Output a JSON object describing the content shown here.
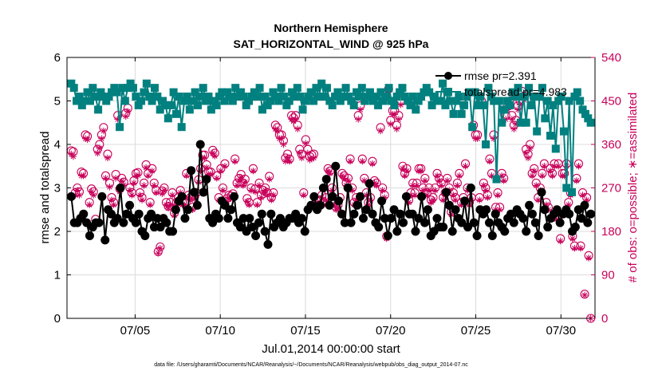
{
  "chart_data": {
    "type": "line",
    "title": "Northern Hemisphere",
    "subtitle": "SAT_HORIZONTAL_WIND @ 925 hPa",
    "xlabel": "Jul.01,2014 00:00:00 start",
    "ylabel": "rmse and totalspread",
    "y2label": "# of obs: o=possible; ∗=assimilated",
    "x_ticks": [
      "07/05",
      "07/10",
      "07/15",
      "07/20",
      "07/25",
      "07/30"
    ],
    "x_tick_days": [
      5,
      10,
      15,
      20,
      25,
      30
    ],
    "xlim": [
      1,
      32
    ],
    "ylim": [
      0,
      6
    ],
    "y_ticks": [
      "0",
      "1",
      "2",
      "3",
      "4",
      "5",
      "6"
    ],
    "y2lim": [
      0,
      540
    ],
    "y2_ticks": [
      "0",
      "90",
      "180",
      "270",
      "360",
      "450",
      "540"
    ],
    "footnote": "data file: /Users/gharamti/Documents/NCAR/Reanalysis/~/Documents/NCAR/Reanalysis/webpub/obs_diag_output_2014-07.nc",
    "legend": [
      {
        "name": "rmse pr=2.391",
        "color": "#000000"
      },
      {
        "name": "totalspread pr=4.983",
        "color": "#00807f"
      }
    ],
    "colors": {
      "rmse": "#000000",
      "spread": "#00807f",
      "obs": "#c8005a",
      "grid": "#dcdcdc"
    },
    "series": [
      {
        "name": "rmse",
        "values": [
          2.8,
          2.2,
          2.2,
          2.3,
          2.4,
          2.2,
          1.9,
          2.1,
          2.2,
          2.2,
          2.8,
          1.8,
          2.5,
          2.4,
          2.2,
          2.3,
          3.0,
          2.2,
          2.4,
          2.6,
          2.3,
          2.2,
          2.4,
          2.0,
          1.9,
          2.3,
          2.4,
          2.1,
          2.3,
          2.1,
          2.3,
          2.2,
          2.0,
          2.0,
          2.5,
          2.7,
          2.8,
          2.3,
          2.5,
          3.4,
          2.9,
          2.6,
          4.0,
          2.9,
          3.2,
          2.3,
          2.2,
          2.4,
          2.3,
          2.7,
          2.6,
          2.3,
          2.5,
          2.8,
          2.2,
          2.1,
          2.3,
          2.0,
          2.3,
          2.1,
          1.9,
          2.2,
          2.4,
          2.0,
          1.7,
          2.4,
          2.1,
          2.2,
          2.3,
          2.1,
          2.2,
          2.3,
          2.3,
          2.4,
          2.2,
          2.3,
          2.0,
          2.5,
          2.6,
          2.8,
          2.5,
          2.6,
          3.0,
          3.2,
          2.6,
          2.8,
          3.5,
          2.7,
          2.4,
          2.2,
          3.0,
          2.2,
          2.4,
          2.6,
          2.8,
          2.3,
          2.5,
          3.1,
          2.4,
          2.2,
          2.1,
          2.7,
          2.3,
          1.9,
          2.3,
          2.5,
          2.0,
          2.4,
          2.2,
          2.8,
          2.4,
          2.4,
          2.0,
          2.3,
          2.8,
          2.2,
          2.5,
          1.9,
          2.0,
          2.3,
          2.1,
          2.1,
          2.9,
          2.6,
          2.0,
          2.5,
          2.3,
          2.2,
          2.7,
          2.1,
          3.0,
          2.2,
          1.9,
          2.5,
          2.4,
          2.5,
          2.2,
          1.9,
          2.4,
          2.2,
          2.1,
          2.0,
          2.3,
          2.4,
          2.2,
          2.5,
          2.4,
          2.3,
          2.0,
          2.6,
          2.4,
          2.2,
          1.9,
          2.9,
          2.5,
          2.1,
          2.3,
          2.4,
          2.5,
          2.2,
          2.4,
          2.5,
          2.4,
          2.0,
          2.1,
          2.5,
          2.3,
          2.6,
          2.2,
          2.4
        ]
      },
      {
        "name": "totalspread",
        "values": [
          5.4,
          5.3,
          5.0,
          5.1,
          4.9,
          5.0,
          5.2,
          5.0,
          5.3,
          5.1,
          4.8,
          5.2,
          5.1,
          5.0,
          5.1,
          5.2,
          5.3,
          5.2,
          4.4,
          5.3,
          5.0,
          5.3,
          5.4,
          5.3,
          5.1,
          4.9,
          5.0,
          5.2,
          5.4,
          5.1,
          5.0,
          5.3,
          5.1,
          4.8,
          5.0,
          4.9,
          4.6,
          4.9,
          5.2,
          4.7,
          5.1,
          4.4,
          5.0,
          5.1,
          4.8,
          5.0,
          5.2,
          4.9,
          5.1,
          5.3,
          5.0,
          5.1,
          4.8,
          5.0,
          4.9,
          5.1,
          5.2,
          5.0,
          5.2,
          5.1,
          5.0,
          5.3,
          5.1,
          5.2,
          5.1,
          4.9,
          5.0,
          5.1,
          5.2,
          5.1,
          5.3,
          4.8,
          5.1,
          4.9,
          5.0,
          5.2,
          5.1,
          5.0,
          5.3,
          5.1,
          4.9,
          5.0,
          5.2,
          5.1,
          5.3,
          5.1,
          4.8,
          5.0,
          5.1,
          5.2,
          5.0,
          5.3,
          5.1,
          5.4,
          5.1,
          5.3,
          5.0,
          4.9,
          5.1,
          5.2,
          5.0,
          5.1,
          5.3,
          5.1,
          5.0,
          4.9,
          5.2,
          5.1,
          5.3,
          5.0,
          5.1,
          5.2,
          5.0,
          5.1,
          4.9,
          5.2,
          5.0,
          5.1,
          5.3,
          5.0,
          4.9,
          5.1,
          5.2,
          5.3,
          5.1,
          5.0,
          4.9,
          5.1,
          4.8,
          5.0,
          5.1,
          5.2,
          5.3,
          5.2,
          4.9,
          5.1,
          5.0,
          5.0,
          5.4,
          4.9,
          5.2,
          5.0,
          4.7,
          5.0,
          5.1,
          4.7,
          4.9,
          5.1,
          5.2,
          4.4,
          5.2,
          4.9,
          5.1,
          4.9,
          4.0,
          5.3,
          5.1,
          5.0,
          3.2,
          5.0,
          4.5,
          4.8,
          5.0,
          4.9,
          5.2,
          5.1,
          5.3,
          4.5,
          5.1,
          4.5,
          5.3,
          4.9,
          5.1,
          4.3,
          5.1,
          5.3,
          4.6,
          5.0,
          4.2,
          4.9,
          3.9,
          5.0,
          5.1,
          4.3,
          3.0,
          5.0,
          2.9,
          5.1,
          5.2,
          5.0,
          4.8,
          4.7,
          4.6,
          4.5
        ]
      },
      {
        "name": "obs_possible",
        "values": [
          347,
          345,
          260,
          270,
          262,
          303,
          300,
          380,
          377,
          240,
          268,
          262,
          205,
          350,
          360,
          380,
          395,
          295,
          340,
          280,
          250,
          240,
          298,
          420,
          268,
          290,
          282,
          425,
          435,
          270,
          260,
          285,
          300,
          302,
          260,
          250,
          280,
          318,
          300,
          240,
          310,
          280,
          265,
          138,
          148,
          264,
          270,
          240,
          232,
          240,
          260,
          218,
          240,
          250,
          265,
          240,
          240,
          300,
          255,
          250,
          230,
          253,
          260,
          287,
          310,
          338,
          338,
          318,
          303,
          303,
          348,
          342,
          295,
          250,
          310,
          270,
          320,
          248,
          255,
          253,
          258,
          330,
          280,
          290,
          298,
          280,
          288,
          248,
          240,
          270,
          310,
          268,
          240,
          280,
          255,
          265,
          270,
          260,
          294,
          250,
          260,
          400,
          395,
          380,
          380,
          368,
          332,
          340,
          330,
          420,
          415,
          420,
          400,
          350,
          340,
          260,
          370,
          350,
          335,
          338,
          340,
          230,
          245,
          245,
          255,
          240,
          250,
          310,
          305,
          270,
          240,
          230,
          235,
          250,
          300,
          295,
          280,
          290,
          330,
          270,
          240,
          250,
          420,
          440,
          330,
          290,
          260,
          240,
          250,
          325,
          285,
          280,
          450,
          395,
          270,
          255,
          170,
          475,
          410,
          430,
          430,
          400,
          420,
          450,
          315,
          300,
          310,
          245,
          260,
          280,
          260,
          280,
          310,
          310,
          270,
          290,
          260,
          270,
          245,
          250,
          270,
          300,
          290,
          280,
          250,
          260,
          290,
          270,
          220,
          260,
          250,
          280,
          300,
          240,
          250,
          320,
          270,
          240,
          250,
          400,
          380,
          380,
          250,
          450,
          280,
          270,
          255,
          330,
          300,
          380,
          230,
          260,
          230,
          300,
          290,
          420,
          440,
          450,
          420,
          400,
          410,
          440,
          450,
          470,
          460,
          350,
          340,
          360,
          300,
          310,
          280,
          250,
          270,
          300,
          320,
          240,
          230,
          310,
          300,
          320,
          210,
          320,
          165,
          300,
          300,
          320,
          240,
          260,
          170,
          150,
          290,
          320,
          150,
          260,
          50,
          250,
          130,
          0
        ]
      },
      {
        "name": "obs_assimilated",
        "values": [
          340,
          335,
          255,
          265,
          255,
          295,
          295,
          372,
          370,
          235,
          262,
          255,
          198,
          342,
          352,
          372,
          388,
          290,
          332,
          272,
          245,
          235,
          290,
          412,
          262,
          284,
          276,
          418,
          428,
          265,
          255,
          280,
          295,
          296,
          255,
          245,
          275,
          312,
          295,
          235,
          305,
          275,
          260,
          135,
          145,
          258,
          265,
          235,
          228,
          235,
          255,
          213,
          235,
          245,
          260,
          235,
          235,
          295,
          250,
          245,
          225,
          248,
          255,
          282,
          305,
          332,
          332,
          312,
          298,
          298,
          342,
          336,
          290,
          245,
          305,
          265,
          315,
          242,
          250,
          248,
          252,
          325,
          275,
          285,
          292,
          275,
          282,
          242,
          235,
          265,
          305,
          262,
          235,
          275,
          250,
          260,
          265,
          255,
          288,
          245,
          255,
          392,
          388,
          372,
          372,
          360,
          325,
          332,
          325,
          412,
          408,
          412,
          392,
          342,
          332,
          255,
          362,
          342,
          328,
          330,
          332,
          225,
          240,
          240,
          250,
          235,
          245,
          305,
          300,
          265,
          235,
          225,
          230,
          245,
          295,
          290,
          275,
          285,
          325,
          265,
          235,
          245,
          412,
          432,
          325,
          285,
          255,
          235,
          245,
          320,
          280,
          275,
          442,
          388,
          265,
          250,
          165,
          468,
          402,
          422,
          422,
          392,
          412,
          442,
          310,
          295,
          305,
          240,
          255,
          275,
          255,
          275,
          305,
          305,
          265,
          285,
          255,
          265,
          240,
          245,
          265,
          295,
          285,
          275,
          245,
          255,
          285,
          265,
          215,
          255,
          245,
          275,
          295,
          235,
          245,
          315,
          265,
          235,
          245,
          392,
          372,
          372,
          245,
          442,
          275,
          265,
          250,
          325,
          295,
          372,
          225,
          255,
          225,
          295,
          285,
          412,
          432,
          442,
          412,
          392,
          402,
          432,
          442,
          462,
          452,
          342,
          332,
          352,
          295,
          305,
          275,
          245,
          265,
          295,
          315,
          235,
          225,
          305,
          295,
          315,
          205,
          315,
          160,
          295,
          295,
          315,
          235,
          255,
          165,
          145,
          285,
          315,
          145,
          255,
          48,
          245,
          125,
          0
        ]
      }
    ]
  }
}
